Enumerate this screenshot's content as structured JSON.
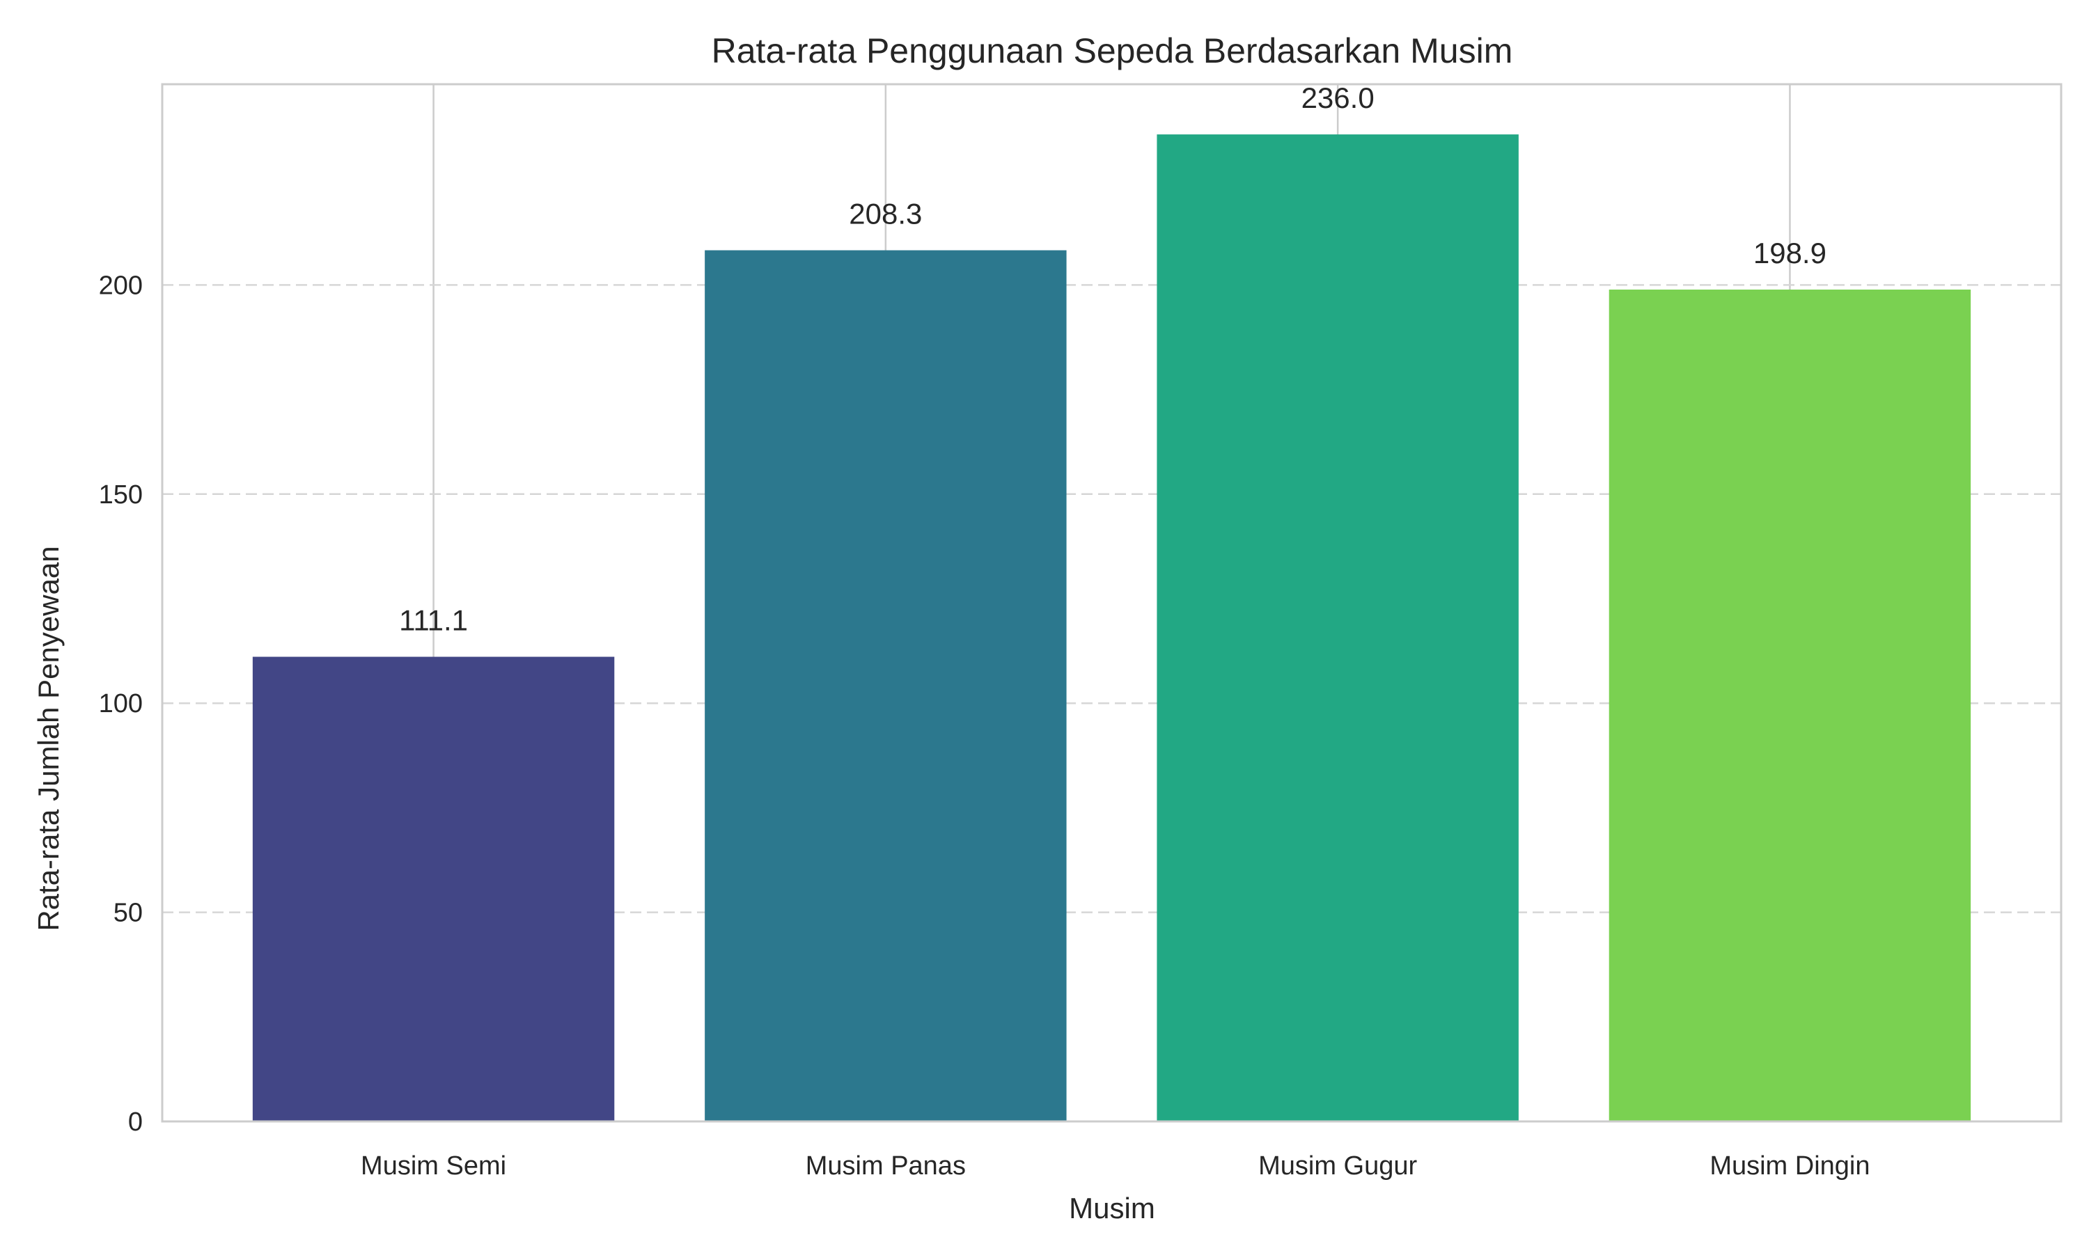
{
  "chart_data": {
    "type": "bar",
    "title": "Rata-rata Penggunaan Sepeda Berdasarkan Musim",
    "xlabel": "Musim",
    "ylabel": "Rata-rata Jumlah Penyewaan",
    "categories": [
      "Musim Semi",
      "Musim Panas",
      "Musim Gugur",
      "Musim Dingin"
    ],
    "values": [
      111.1,
      208.3,
      236.0,
      198.9
    ],
    "value_labels": [
      "111.1",
      "208.3",
      "236.0",
      "198.9"
    ],
    "colors": [
      "#424686",
      "#2C788E",
      "#22A884",
      "#7AD151"
    ],
    "ylim": [
      0,
      248
    ],
    "yticks": [
      0,
      50,
      100,
      150,
      200
    ],
    "ytick_labels": [
      "0",
      "50",
      "100",
      "150",
      "200"
    ],
    "grid": {
      "y": true,
      "y_style": "dashed",
      "x": true
    },
    "legend": "none"
  }
}
